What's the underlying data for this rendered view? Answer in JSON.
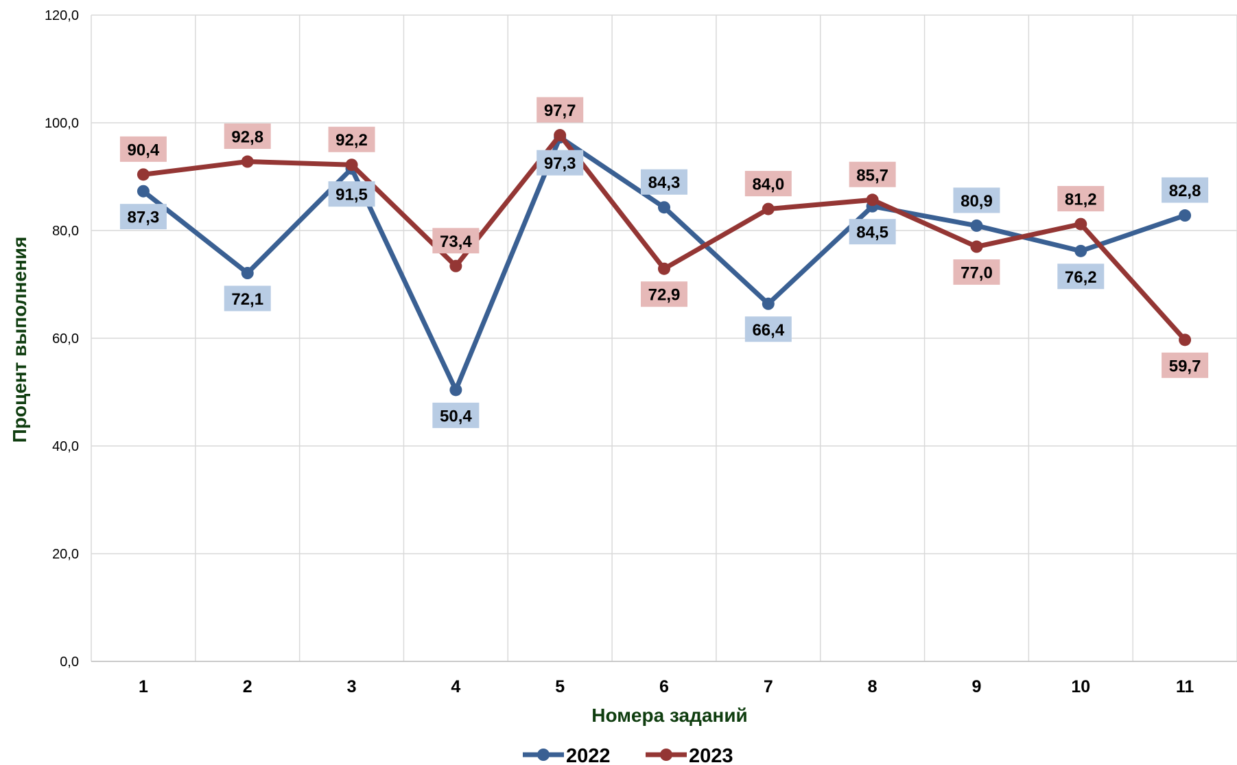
{
  "chart_data": {
    "type": "line",
    "title": "",
    "xlabel": "Номера заданий",
    "ylabel": "Процент выполнения",
    "ylim": [
      0,
      120
    ],
    "yticks": [
      "0,0",
      "20,0",
      "40,0",
      "60,0",
      "80,0",
      "100,0",
      "120,0"
    ],
    "categories": [
      "1",
      "2",
      "3",
      "4",
      "5",
      "6",
      "7",
      "8",
      "9",
      "10",
      "11"
    ],
    "grid": true,
    "legend_position": "bottom",
    "series": [
      {
        "name": "2022",
        "color": "#3a6093",
        "label_bg": "#b8cce4",
        "values": [
          87.3,
          72.1,
          91.5,
          50.4,
          97.3,
          84.3,
          66.4,
          84.5,
          80.9,
          76.2,
          82.8
        ],
        "labels": [
          "87,3",
          "72,1",
          "91,5",
          "50,4",
          "97,3",
          "84,3",
          "66,4",
          "84,5",
          "80,9",
          "76,2",
          "82,8"
        ],
        "label_sides": [
          "below",
          "below",
          "below",
          "below",
          "below",
          "above",
          "below",
          "below",
          "above",
          "below",
          "above"
        ]
      },
      {
        "name": "2023",
        "color": "#943634",
        "label_bg": "#e6b9b8",
        "values": [
          90.4,
          92.8,
          92.2,
          73.4,
          97.7,
          72.9,
          84.0,
          85.7,
          77.0,
          81.2,
          59.7
        ],
        "labels": [
          "90,4",
          "92,8",
          "92,2",
          "73,4",
          "97,7",
          "72,9",
          "84,0",
          "85,7",
          "77,0",
          "81,2",
          "59,7"
        ],
        "label_sides": [
          "above",
          "above",
          "above",
          "above",
          "above",
          "below",
          "above",
          "above",
          "below",
          "above",
          "below"
        ]
      }
    ]
  }
}
